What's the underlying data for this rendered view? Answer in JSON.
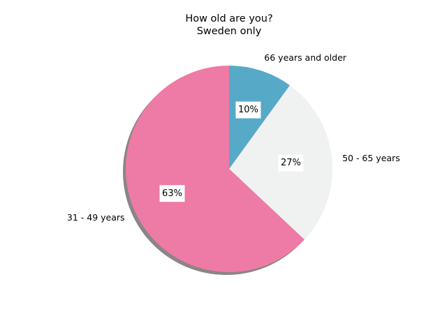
{
  "chart_data": {
    "type": "pie",
    "title": "How old are you?",
    "subtitle": "Sweden only",
    "slices": [
      {
        "label": "66 years and older",
        "value": 10,
        "pct_label": "10%",
        "color": "#57a9c8"
      },
      {
        "label": "50 - 65 years",
        "value": 27,
        "pct_label": "27%",
        "color": "#f0f1f1"
      },
      {
        "label": "31 - 49 years",
        "value": 63,
        "pct_label": "63%",
        "color": "#ed7ba5"
      }
    ],
    "start_angle_deg": 90,
    "direction": "clockwise",
    "shadow": true,
    "legend": "none"
  }
}
